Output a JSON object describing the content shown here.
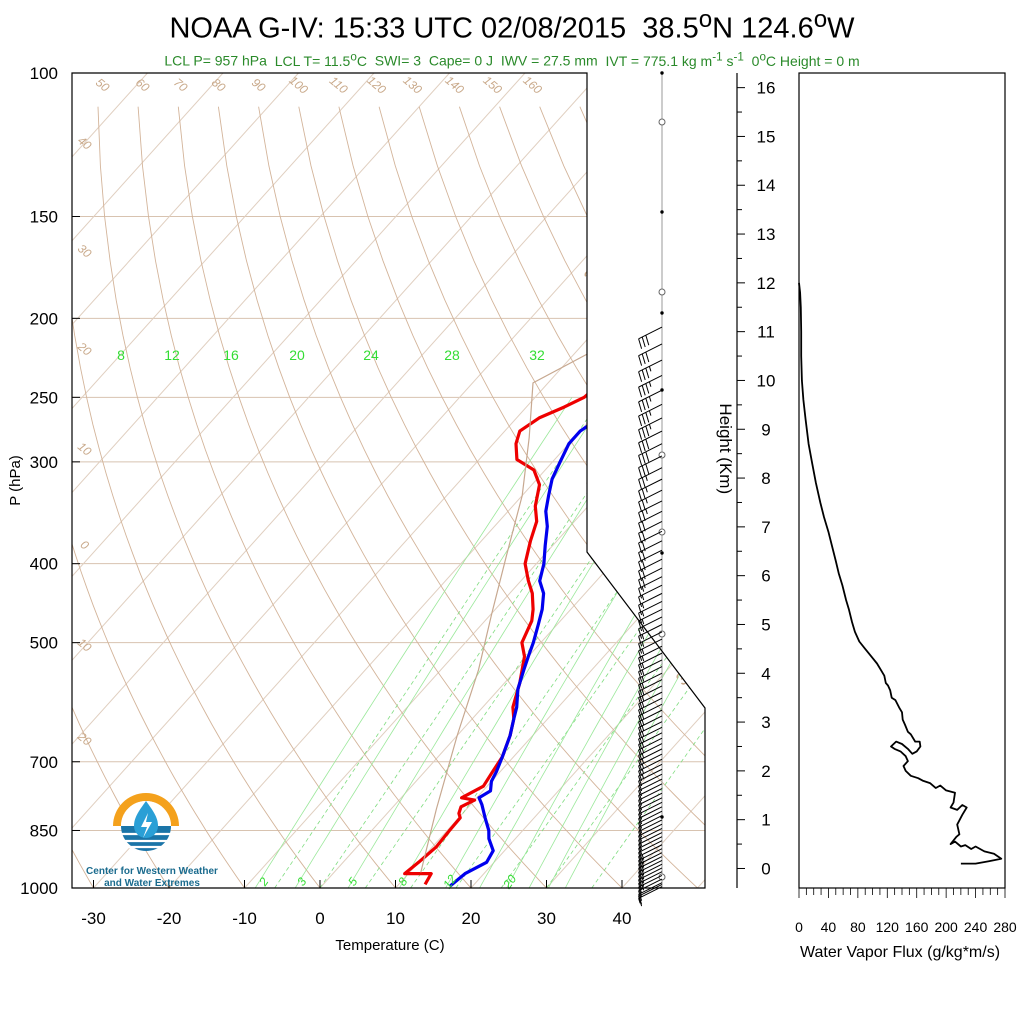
{
  "title_lead": "NOAA G-IV: 15:33 UTC 02/08/2015  38.5",
  "title_lat_unit": "N 124.6",
  "title_lon_unit": "W",
  "subtitle": {
    "lcl_p": "LCL P= 957 hPa",
    "lcl_t_lead": "LCL T= 11.5",
    "lcl_t_unit": "C",
    "swi": "SWI= 3",
    "cape": "Cape= 0 J",
    "iwv": "IWV = 27.5 mm",
    "ivt_lead": "IVT = 775.1 kg m",
    "ivt_exp1": "-1",
    "ivt_mid": " s",
    "ivt_exp2": "-1",
    "zero_c_lead": "0",
    "zero_c_tail": "C Height = 0 m"
  },
  "logo": {
    "line1": "Center for Western Weather",
    "line2": "and Water Extremes"
  },
  "chart_data": [
    {
      "type": "line",
      "name": "skew-t",
      "xlabel": "Temperature (C)",
      "ylabel": "P (hPa)",
      "xlim": [
        -35,
        50
      ],
      "ylim": [
        1000,
        100
      ],
      "yscale": "log",
      "x_ticks": [
        -30,
        -20,
        -10,
        0,
        10,
        20,
        30,
        40
      ],
      "y_ticks": [
        100,
        150,
        200,
        250,
        300,
        400,
        500,
        700,
        850,
        1000
      ],
      "isotherm_labels": [
        "-20",
        "-10",
        "0",
        "10",
        "20",
        "30"
      ],
      "dry_adiabat_labels": [
        "50",
        "60",
        "70",
        "80",
        "90",
        "100",
        "110",
        "120",
        "130",
        "140",
        "150",
        "160",
        "40",
        "30",
        "20",
        "10",
        "0",
        "10",
        "20"
      ],
      "mixing_ratio_labels_top": [
        "8",
        "12",
        "16",
        "20",
        "24",
        "28",
        "32"
      ],
      "mixing_ratio_labels_bottom": [
        "2",
        "3",
        "5",
        "8",
        "12",
        "20"
      ],
      "wind_speed_labels": [
        "30",
        "20",
        "10",
        "0",
        "10",
        "30"
      ],
      "series": [
        {
          "key": "temperature",
          "color": "#ee0000",
          "points": [
            [
              13.5,
              990
            ],
            [
              13,
              960
            ],
            [
              9.5,
              960
            ],
            [
              10,
              930
            ],
            [
              10.5,
              890
            ],
            [
              10.3,
              850
            ],
            [
              10.2,
              820
            ],
            [
              9.5,
              810
            ],
            [
              9,
              795
            ],
            [
              10,
              780
            ],
            [
              8,
              775
            ],
            [
              9.5,
              750
            ],
            [
              9,
              720
            ],
            [
              8.5,
              690
            ],
            [
              7,
              650
            ],
            [
              5.5,
              620
            ],
            [
              4,
              600
            ],
            [
              2,
              560
            ],
            [
              -0.5,
              520
            ],
            [
              -2.5,
              500
            ],
            [
              -3.8,
              470
            ],
            [
              -5,
              455
            ],
            [
              -7,
              435
            ],
            [
              -9,
              420
            ],
            [
              -11.5,
              400
            ],
            [
              -13.5,
              375
            ],
            [
              -15,
              355
            ],
            [
              -17,
              340
            ],
            [
              -19,
              320
            ],
            [
              -21.5,
              307
            ],
            [
              -25,
              298
            ],
            [
              -27,
              285
            ],
            [
              -28,
              275
            ],
            [
              -27,
              265
            ],
            [
              -25,
              257
            ],
            [
              -23.5,
              250
            ],
            [
              -23,
              240
            ],
            [
              -22,
              230
            ],
            [
              -23,
              220
            ],
            [
              -23.5,
              210
            ],
            [
              -23.5,
              200
            ],
            [
              -22.5,
              192
            ]
          ]
        },
        {
          "key": "dewpoint",
          "color": "#0000ee",
          "points": [
            [
              17,
              995
            ],
            [
              17.5,
              960
            ],
            [
              19,
              930
            ],
            [
              18.5,
              900
            ],
            [
              16.5,
              870
            ],
            [
              15.5,
              850
            ],
            [
              13.5,
              820
            ],
            [
              11.5,
              790
            ],
            [
              10.3,
              775
            ],
            [
              11,
              760
            ],
            [
              10,
              740
            ],
            [
              9.5,
              720
            ],
            [
              8.5,
              690
            ],
            [
              7,
              650
            ],
            [
              5.5,
              620
            ],
            [
              4.5,
              600
            ],
            [
              2.5,
              570
            ],
            [
              1,
              540
            ],
            [
              0,
              520
            ],
            [
              -1,
              500
            ],
            [
              -2.5,
              475
            ],
            [
              -3.8,
              455
            ],
            [
              -5.5,
              435
            ],
            [
              -7.5,
              420
            ],
            [
              -9,
              400
            ],
            [
              -11,
              380
            ],
            [
              -13,
              360
            ],
            [
              -15,
              345
            ],
            [
              -16.5,
              330
            ],
            [
              -18,
              315
            ],
            [
              -19,
              300
            ],
            [
              -20,
              285
            ],
            [
              -20,
              275
            ],
            [
              -19,
              265
            ],
            [
              -16,
              260
            ],
            [
              -14.5,
              255
            ],
            [
              -13,
              248
            ],
            [
              -12.5,
              240
            ],
            [
              -11.5,
              233
            ],
            [
              -11.5,
              225
            ],
            [
              -12,
              218
            ],
            [
              -12.5,
              210
            ],
            [
              -13,
              200
            ],
            [
              -12.5,
              193
            ]
          ]
        },
        {
          "key": "parcel",
          "color": "#c7a890",
          "points": [
            [
              11.5,
              957
            ],
            [
              6,
              800
            ],
            [
              0,
              650
            ],
            [
              -5,
              540
            ],
            [
              -10,
              460
            ],
            [
              -15,
              390
            ],
            [
              -20,
              330
            ],
            [
              -26,
              280
            ],
            [
              -32,
              240
            ],
            [
              -28,
              220
            ]
          ]
        }
      ],
      "wind_profile": [
        [
          996,
          6
        ],
        [
          990,
          8
        ],
        [
          985,
          10
        ],
        [
          975,
          12
        ],
        [
          965,
          14
        ],
        [
          955,
          14
        ],
        [
          945,
          14
        ],
        [
          935,
          15
        ],
        [
          925,
          15
        ],
        [
          915,
          14
        ],
        [
          905,
          13
        ],
        [
          895,
          13
        ],
        [
          885,
          13
        ],
        [
          875,
          12
        ],
        [
          865,
          12
        ],
        [
          855,
          12
        ],
        [
          845,
          12
        ],
        [
          835,
          11
        ],
        [
          825,
          11
        ],
        [
          815,
          11
        ],
        [
          805,
          11
        ],
        [
          795,
          11
        ],
        [
          785,
          11
        ],
        [
          775,
          11
        ],
        [
          765,
          11
        ],
        [
          755,
          12
        ],
        [
          745,
          12
        ],
        [
          735,
          12
        ],
        [
          725,
          12
        ],
        [
          715,
          12
        ],
        [
          705,
          13
        ],
        [
          695,
          13
        ],
        [
          685,
          13
        ],
        [
          675,
          13
        ],
        [
          665,
          13
        ],
        [
          655,
          13
        ],
        [
          645,
          13
        ],
        [
          635,
          13
        ],
        [
          625,
          13
        ],
        [
          615,
          13
        ],
        [
          605,
          13
        ],
        [
          595,
          13
        ],
        [
          585,
          13
        ],
        [
          575,
          14
        ],
        [
          565,
          14
        ],
        [
          555,
          14
        ],
        [
          545,
          14
        ],
        [
          535,
          14
        ],
        [
          525,
          14
        ],
        [
          515,
          14
        ],
        [
          505,
          15
        ],
        [
          495,
          15
        ],
        [
          485,
          15
        ],
        [
          475,
          16
        ],
        [
          465,
          16
        ],
        [
          455,
          16
        ],
        [
          445,
          16
        ],
        [
          435,
          17
        ],
        [
          425,
          17
        ],
        [
          415,
          17
        ],
        [
          405,
          18
        ],
        [
          395,
          18
        ],
        [
          385,
          19
        ],
        [
          375,
          19
        ],
        [
          365,
          20
        ],
        [
          355,
          21
        ],
        [
          345,
          22
        ],
        [
          335,
          23
        ],
        [
          325,
          24
        ],
        [
          315,
          25
        ],
        [
          305,
          26
        ],
        [
          295,
          28
        ],
        [
          285,
          30
        ],
        [
          275,
          32
        ],
        [
          265,
          33
        ],
        [
          255,
          33
        ],
        [
          245,
          34
        ],
        [
          235,
          34
        ],
        [
          225,
          33
        ],
        [
          215,
          32
        ],
        [
          205,
          30
        ]
      ]
    },
    {
      "type": "line",
      "name": "water-vapor-flux",
      "xlabel": "Water Vapor Flux (g/kg*m/s)",
      "ylabel": "Height (Km)",
      "xlim": [
        0,
        280
      ],
      "ylim": [
        -0.4,
        16.3
      ],
      "x_ticks": [
        0,
        40,
        80,
        120,
        160,
        200,
        240,
        280
      ],
      "y_ticks": [
        0,
        1,
        2,
        3,
        4,
        5,
        6,
        7,
        8,
        9,
        10,
        11,
        12,
        13,
        14,
        15,
        16
      ],
      "series": [
        {
          "key": "flux",
          "color": "#000000",
          "points": [
            [
              220,
              0.1
            ],
            [
              240,
              0.1
            ],
            [
              258,
              0.15
            ],
            [
              275,
              0.2
            ],
            [
              265,
              0.3
            ],
            [
              252,
              0.35
            ],
            [
              240,
              0.45
            ],
            [
              234,
              0.4
            ],
            [
              226,
              0.48
            ],
            [
              220,
              0.45
            ],
            [
              212,
              0.55
            ],
            [
              206,
              0.5
            ],
            [
              214,
              0.65
            ],
            [
              218,
              0.7
            ],
            [
              215,
              0.9
            ],
            [
              222,
              1.1
            ],
            [
              228,
              1.25
            ],
            [
              222,
              1.3
            ],
            [
              215,
              1.2
            ],
            [
              206,
              1.25
            ],
            [
              210,
              1.35
            ],
            [
              212,
              1.55
            ],
            [
              200,
              1.6
            ],
            [
              192,
              1.7
            ],
            [
              186,
              1.65
            ],
            [
              178,
              1.75
            ],
            [
              168,
              1.8
            ],
            [
              162,
              1.85
            ],
            [
              152,
              1.9
            ],
            [
              145,
              2.0
            ],
            [
              142,
              2.1
            ],
            [
              148,
              2.2
            ],
            [
              145,
              2.3
            ],
            [
              138,
              2.4
            ],
            [
              130,
              2.45
            ],
            [
              125,
              2.5
            ],
            [
              132,
              2.6
            ],
            [
              140,
              2.55
            ],
            [
              148,
              2.45
            ],
            [
              154,
              2.35
            ],
            [
              160,
              2.4
            ],
            [
              165,
              2.5
            ],
            [
              164,
              2.6
            ],
            [
              158,
              2.6
            ],
            [
              152,
              2.75
            ],
            [
              148,
              2.8
            ],
            [
              144,
              2.95
            ],
            [
              141,
              3.05
            ],
            [
              140,
              3.2
            ],
            [
              136,
              3.3
            ],
            [
              131,
              3.45
            ],
            [
              126,
              3.5
            ],
            [
              124,
              3.65
            ],
            [
              121,
              3.75
            ],
            [
              118,
              3.8
            ],
            [
              116,
              3.95
            ],
            [
              112,
              4.05
            ],
            [
              106,
              4.2
            ],
            [
              98,
              4.35
            ],
            [
              90,
              4.5
            ],
            [
              82,
              4.65
            ],
            [
              76,
              4.85
            ],
            [
              72,
              5.05
            ],
            [
              68,
              5.3
            ],
            [
              64,
              5.5
            ],
            [
              59,
              5.8
            ],
            [
              54,
              6.05
            ],
            [
              50,
              6.3
            ],
            [
              45,
              6.6
            ],
            [
              40,
              6.9
            ],
            [
              34,
              7.2
            ],
            [
              29,
              7.5
            ],
            [
              23,
              7.9
            ],
            [
              18,
              8.3
            ],
            [
              13,
              8.7
            ],
            [
              9,
              9.2
            ],
            [
              6,
              9.6
            ],
            [
              4,
              10.0
            ],
            [
              3,
              10.5
            ],
            [
              3,
              11.0
            ],
            [
              2.5,
              11.5
            ],
            [
              1.5,
              11.8
            ],
            [
              0,
              12.0
            ]
          ]
        }
      ]
    }
  ]
}
